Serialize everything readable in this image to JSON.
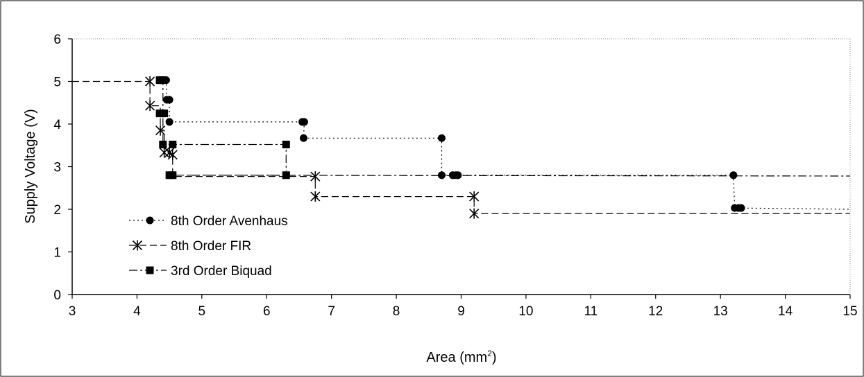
{
  "chart_data": {
    "type": "line",
    "title": "",
    "xlabel": "Area (mm",
    "xlabel_sup": "2",
    "xlabel_close": ")",
    "ylabel": "Supply Voltage (V)",
    "xlim": [
      3,
      15
    ],
    "ylim": [
      0,
      6
    ],
    "xticks": [
      "3",
      "4",
      "5",
      "6",
      "7",
      "8",
      "9",
      "10",
      "11",
      "12",
      "13",
      "14",
      "15"
    ],
    "yticks": [
      "0",
      "1",
      "2",
      "3",
      "4",
      "5",
      "6"
    ],
    "grid": false,
    "legend_position": "left",
    "series": [
      {
        "name": "8th Order Avenhaus",
        "style": "dotted",
        "marker": "circle",
        "points": [
          [
            4.45,
            5.03
          ],
          [
            4.46,
            4.57
          ],
          [
            4.5,
            4.57
          ],
          [
            4.5,
            4.05
          ],
          [
            6.55,
            4.05
          ],
          [
            6.58,
            4.05
          ],
          [
            6.57,
            3.67
          ],
          [
            8.7,
            3.67
          ],
          [
            8.7,
            2.8
          ],
          [
            8.87,
            2.8
          ],
          [
            8.92,
            2.8
          ],
          [
            8.95,
            2.8
          ],
          [
            13.2,
            2.8
          ],
          [
            13.22,
            2.03
          ],
          [
            13.28,
            2.03
          ],
          [
            13.32,
            2.03
          ]
        ],
        "markers": [
          [
            4.45,
            5.03
          ],
          [
            4.46,
            4.57
          ],
          [
            4.5,
            4.57
          ],
          [
            4.5,
            4.05
          ],
          [
            6.55,
            4.05
          ],
          [
            6.58,
            4.05
          ],
          [
            6.57,
            3.67
          ],
          [
            8.7,
            3.67
          ],
          [
            8.7,
            2.8
          ],
          [
            8.87,
            2.8
          ],
          [
            8.92,
            2.8
          ],
          [
            8.95,
            2.8
          ],
          [
            13.2,
            2.8
          ],
          [
            13.22,
            2.03
          ],
          [
            13.28,
            2.03
          ],
          [
            13.32,
            2.03
          ]
        ],
        "extend_to": [
          15,
          2.0
        ]
      },
      {
        "name": "8th Order FIR",
        "style": "dashed",
        "marker": "star",
        "points": [
          [
            3,
            5
          ],
          [
            4.2,
            5
          ],
          [
            4.2,
            4.43
          ],
          [
            4.36,
            4.43
          ],
          [
            4.36,
            3.85
          ],
          [
            4.42,
            3.85
          ],
          [
            4.42,
            3.33
          ],
          [
            4.5,
            3.33
          ],
          [
            4.5,
            3.28
          ],
          [
            4.55,
            3.28
          ],
          [
            4.55,
            2.77
          ],
          [
            6.75,
            2.77
          ],
          [
            6.75,
            2.3
          ],
          [
            9.2,
            2.3
          ],
          [
            9.2,
            1.9
          ],
          [
            15,
            1.9
          ]
        ],
        "markers": [
          [
            4.2,
            5
          ],
          [
            4.2,
            4.43
          ],
          [
            4.36,
            3.85
          ],
          [
            4.42,
            3.33
          ],
          [
            4.5,
            3.33
          ],
          [
            4.55,
            3.28
          ],
          [
            6.75,
            2.77
          ],
          [
            6.75,
            2.3
          ],
          [
            9.2,
            2.3
          ],
          [
            9.2,
            1.9
          ]
        ]
      },
      {
        "name": "3rd Order Biquad",
        "style": "dashdot",
        "marker": "square",
        "points": [
          [
            4.35,
            5.03
          ],
          [
            4.4,
            5.03
          ],
          [
            4.35,
            4.25
          ],
          [
            4.42,
            4.25
          ],
          [
            4.4,
            3.52
          ],
          [
            4.55,
            3.52
          ],
          [
            6.3,
            3.52
          ],
          [
            6.3,
            2.8
          ],
          [
            4.5,
            2.8
          ],
          [
            4.55,
            2.8
          ],
          [
            15,
            2.78
          ]
        ],
        "path": [
          [
            4.35,
            5.03
          ],
          [
            4.4,
            5.03
          ],
          [
            4.4,
            4.25
          ],
          [
            4.35,
            4.25
          ],
          [
            4.4,
            4.25
          ],
          [
            4.4,
            3.52
          ],
          [
            6.3,
            3.52
          ],
          [
            6.3,
            2.8
          ],
          [
            4.5,
            2.8
          ],
          [
            15,
            2.78
          ]
        ],
        "markers": [
          [
            4.35,
            5.03
          ],
          [
            4.4,
            5.03
          ],
          [
            4.35,
            4.25
          ],
          [
            4.42,
            4.25
          ],
          [
            4.4,
            3.52
          ],
          [
            4.55,
            3.52
          ],
          [
            6.3,
            3.52
          ],
          [
            6.3,
            2.8
          ],
          [
            4.5,
            2.8
          ],
          [
            4.55,
            2.8
          ]
        ]
      }
    ]
  }
}
